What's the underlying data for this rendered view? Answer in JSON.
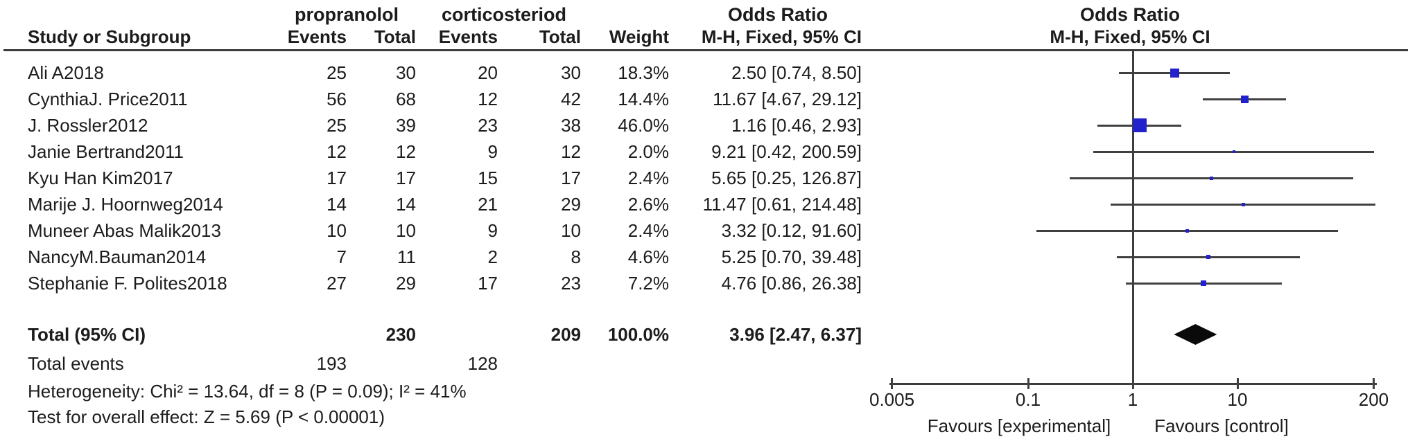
{
  "table": {
    "headers": {
      "study": "Study or Subgroup",
      "group1": "propranolol",
      "group2": "corticosteriod",
      "events": "Events",
      "total": "Total",
      "weight": "Weight",
      "or_title": "Odds Ratio",
      "method": "M-H, Fixed, 95% CI"
    }
  },
  "chart_data": {
    "type": "forest",
    "title": "Odds Ratio",
    "method": "M-H, Fixed, 95% CI",
    "scale": "log",
    "axis_ticks": [
      "0.005",
      "0.1",
      "1",
      "10",
      "200"
    ],
    "axis_range": [
      0.005,
      200
    ],
    "null_line": 1,
    "favours_left": "Favours [experimental]",
    "favours_right": "Favours [control]",
    "marker_color": "#2222CC",
    "studies": [
      {
        "name": "Ali A2018",
        "events1": 25,
        "total1": 30,
        "events2": 20,
        "total2": 30,
        "weight": "18.3%",
        "weight_pct": 18.3,
        "or": 2.5,
        "ci_low": 0.74,
        "ci_high": 8.5,
        "or_text": "2.50 [0.74, 8.50]"
      },
      {
        "name": "CynthiaJ. Price2011",
        "events1": 56,
        "total1": 68,
        "events2": 12,
        "total2": 42,
        "weight": "14.4%",
        "weight_pct": 14.4,
        "or": 11.67,
        "ci_low": 4.67,
        "ci_high": 29.12,
        "or_text": "11.67 [4.67, 29.12]"
      },
      {
        "name": "J. Rossler2012",
        "events1": 25,
        "total1": 39,
        "events2": 23,
        "total2": 38,
        "weight": "46.0%",
        "weight_pct": 46.0,
        "or": 1.16,
        "ci_low": 0.46,
        "ci_high": 2.93,
        "or_text": "1.16 [0.46, 2.93]"
      },
      {
        "name": "Janie Bertrand2011",
        "events1": 12,
        "total1": 12,
        "events2": 9,
        "total2": 12,
        "weight": "2.0%",
        "weight_pct": 2.0,
        "or": 9.21,
        "ci_low": 0.42,
        "ci_high": 200.59,
        "or_text": "9.21 [0.42, 200.59]"
      },
      {
        "name": "Kyu Han Kim2017",
        "events1": 17,
        "total1": 17,
        "events2": 15,
        "total2": 17,
        "weight": "2.4%",
        "weight_pct": 2.4,
        "or": 5.65,
        "ci_low": 0.25,
        "ci_high": 126.87,
        "or_text": "5.65 [0.25, 126.87]"
      },
      {
        "name": "Marije J. Hoornweg2014",
        "events1": 14,
        "total1": 14,
        "events2": 21,
        "total2": 29,
        "weight": "2.6%",
        "weight_pct": 2.6,
        "or": 11.47,
        "ci_low": 0.61,
        "ci_high": 214.48,
        "or_text": "11.47 [0.61, 214.48]"
      },
      {
        "name": "Muneer Abas Malik2013",
        "events1": 10,
        "total1": 10,
        "events2": 9,
        "total2": 10,
        "weight": "2.4%",
        "weight_pct": 2.4,
        "or": 3.32,
        "ci_low": 0.12,
        "ci_high": 91.6,
        "or_text": "3.32 [0.12, 91.60]"
      },
      {
        "name": "NancyM.Bauman2014",
        "events1": 7,
        "total1": 11,
        "events2": 2,
        "total2": 8,
        "weight": "4.6%",
        "weight_pct": 4.6,
        "or": 5.25,
        "ci_low": 0.7,
        "ci_high": 39.48,
        "or_text": "5.25 [0.70, 39.48]"
      },
      {
        "name": "Stephanie F. Polites2018",
        "events1": 27,
        "total1": 29,
        "events2": 17,
        "total2": 23,
        "weight": "7.2%",
        "weight_pct": 7.2,
        "or": 4.76,
        "ci_low": 0.86,
        "ci_high": 26.38,
        "or_text": "4.76 [0.86, 26.38]"
      }
    ],
    "total": {
      "label": "Total (95% CI)",
      "total1": "230",
      "total2": "209",
      "weight": "100.0%",
      "or": 3.96,
      "ci_low": 2.47,
      "ci_high": 6.37,
      "or_text": "3.96 [2.47, 6.37]"
    },
    "total_events": {
      "label": "Total events",
      "events1": "193",
      "events2": "128"
    },
    "heterogeneity": "Heterogeneity: Chi² = 13.64, df = 8 (P = 0.09); I² = 41%",
    "overall_effect": "Test for overall effect: Z = 5.69 (P < 0.00001)"
  }
}
